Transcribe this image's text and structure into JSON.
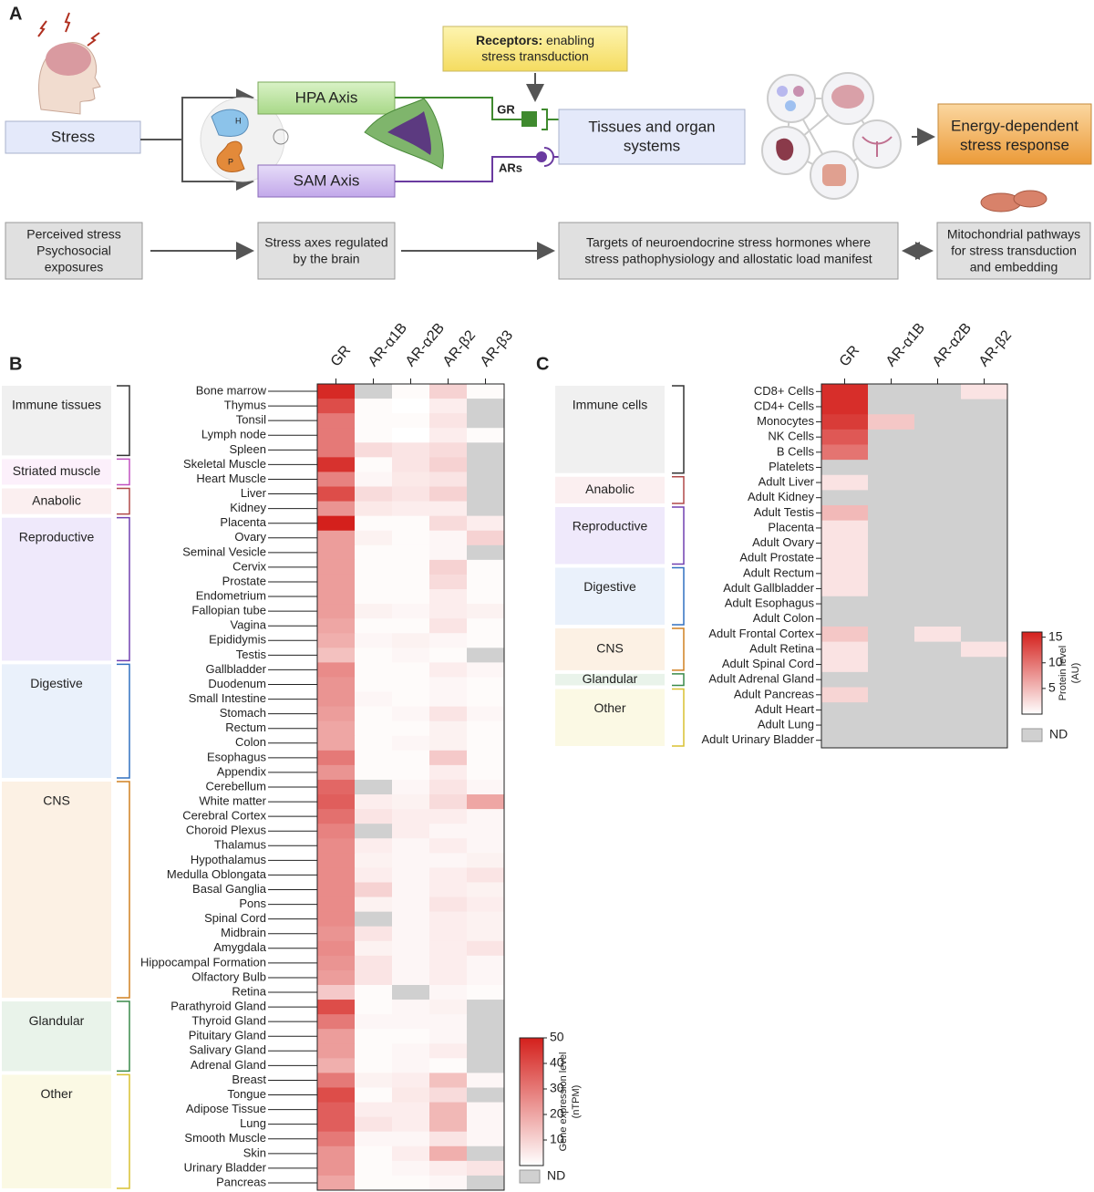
{
  "panel_a": {
    "panel_label": "A",
    "stress": "Stress",
    "hpa": "HPA Axis",
    "sam": "SAM Axis",
    "h_label": "H",
    "p_label": "P",
    "receptors_bold": "Receptors:",
    "receptors_rest": [
      "enabling",
      "stress transduction"
    ],
    "gr": "GR",
    "ars": "ARs",
    "tissues": [
      "Tissues and organ",
      "systems"
    ],
    "energy": [
      "Energy-dependent",
      "stress response"
    ],
    "bottom_row": [
      [
        "Perceived stress",
        "Psychosocial",
        "exposures"
      ],
      [
        "Stress axes regulated",
        "by the brain"
      ],
      [
        "Targets of neuroendocrine stress hormones where",
        "stress pathophysiology and allostatic load manifest"
      ],
      [
        "Mitochondrial pathways",
        "for stress transduction",
        "and embedding"
      ]
    ]
  },
  "chart_data": [
    {
      "type": "heatmap",
      "panel_label": "B",
      "columns": [
        "GR",
        "AR-α1B",
        "AR-α2B",
        "AR-β2",
        "AR-β3"
      ],
      "rows": [
        "Bone marrow",
        "Thymus",
        "Tonsil",
        "Lymph node",
        "Spleen",
        "Skeletal Muscle",
        "Heart Muscle",
        "Liver",
        "Kidney",
        "Placenta",
        "Ovary",
        "Seminal Vesicle",
        "Cervix",
        "Prostate",
        "Endometrium",
        "Fallopian tube",
        "Vagina",
        "Epididymis",
        "Testis",
        "Gallbladder",
        "Duodenum",
        "Small Intestine",
        "Stomach",
        "Rectum",
        "Colon",
        "Esophagus",
        "Appendix",
        "Cerebellum",
        "White matter",
        "Cerebral Cortex",
        "Choroid Plexus",
        "Thalamus",
        "Hypothalamus",
        "Medulla Oblongata",
        "Basal Ganglia",
        "Pons",
        "Spinal Cord",
        "Midbrain",
        "Amygdala",
        "Hippocampal Formation",
        "Olfactory Bulb",
        "Retina",
        "Parathyroid Gland",
        "Thyroid Gland",
        "Pituitary Gland",
        "Salivary Gland",
        "Adrenal Gland",
        "Breast",
        "Tongue",
        "Adipose Tissue",
        "Lung",
        "Smooth Muscle",
        "Skin",
        "Urinary Bladder",
        "Pancreas"
      ],
      "values": [
        [
          48,
          null,
          1,
          10,
          1
        ],
        [
          40,
          1,
          0,
          4,
          null
        ],
        [
          30,
          1,
          1,
          6,
          null
        ],
        [
          30,
          1,
          0,
          4,
          1
        ],
        [
          30,
          8,
          6,
          8,
          null
        ],
        [
          46,
          1,
          6,
          10,
          null
        ],
        [
          28,
          2,
          5,
          6,
          null
        ],
        [
          40,
          8,
          6,
          10,
          null
        ],
        [
          24,
          5,
          4,
          4,
          null
        ],
        [
          50,
          1,
          1,
          8,
          4
        ],
        [
          22,
          3,
          1,
          2,
          10
        ],
        [
          22,
          1,
          1,
          2,
          null
        ],
        [
          22,
          1,
          1,
          10,
          1
        ],
        [
          22,
          1,
          1,
          8,
          1
        ],
        [
          22,
          1,
          1,
          4,
          1
        ],
        [
          22,
          3,
          2,
          4,
          3
        ],
        [
          20,
          1,
          1,
          6,
          1
        ],
        [
          18,
          2,
          3,
          2,
          1
        ],
        [
          14,
          1,
          2,
          1,
          null
        ],
        [
          26,
          1,
          1,
          4,
          2
        ],
        [
          24,
          1,
          1,
          2,
          1
        ],
        [
          24,
          2,
          1,
          2,
          1
        ],
        [
          22,
          1,
          2,
          6,
          2
        ],
        [
          20,
          1,
          1,
          3,
          1
        ],
        [
          20,
          1,
          2,
          3,
          1
        ],
        [
          30,
          1,
          1,
          12,
          1
        ],
        [
          24,
          1,
          1,
          4,
          1
        ],
        [
          34,
          null,
          2,
          6,
          2
        ],
        [
          36,
          4,
          3,
          8,
          20
        ],
        [
          32,
          6,
          4,
          4,
          2
        ],
        [
          28,
          null,
          4,
          2,
          2
        ],
        [
          26,
          4,
          2,
          4,
          2
        ],
        [
          26,
          3,
          2,
          2,
          3
        ],
        [
          26,
          4,
          2,
          4,
          6
        ],
        [
          26,
          10,
          2,
          4,
          3
        ],
        [
          26,
          3,
          2,
          6,
          4
        ],
        [
          26,
          null,
          2,
          4,
          3
        ],
        [
          24,
          6,
          2,
          4,
          3
        ],
        [
          26,
          3,
          2,
          4,
          6
        ],
        [
          24,
          6,
          2,
          4,
          2
        ],
        [
          22,
          6,
          2,
          4,
          2
        ],
        [
          12,
          1,
          null,
          2,
          1
        ],
        [
          40,
          1,
          2,
          3,
          null
        ],
        [
          30,
          2,
          2,
          2,
          null
        ],
        [
          22,
          1,
          1,
          2,
          null
        ],
        [
          22,
          1,
          2,
          4,
          null
        ],
        [
          18,
          1,
          2,
          1,
          null
        ],
        [
          30,
          3,
          4,
          14,
          2
        ],
        [
          40,
          1,
          5,
          8,
          null
        ],
        [
          36,
          4,
          4,
          16,
          2
        ],
        [
          36,
          6,
          4,
          16,
          2
        ],
        [
          30,
          2,
          2,
          6,
          2
        ],
        [
          24,
          1,
          4,
          18,
          null
        ],
        [
          24,
          1,
          2,
          4,
          6
        ],
        [
          20,
          1,
          1,
          2,
          null
        ]
      ],
      "groups": [
        {
          "label": "Immune tissues"
        },
        {
          "label": "Striated muscle"
        },
        {
          "label": "Anabolic"
        },
        {
          "label": "Reproductive"
        },
        {
          "label": "Digestive"
        },
        {
          "label": "CNS"
        },
        {
          "label": "Glandular"
        },
        {
          "label": "Other"
        }
      ],
      "colorbar": {
        "label": [
          "Gene expression level",
          "(nTPM)"
        ],
        "lim": [
          0,
          50
        ],
        "ticks": [
          10,
          20,
          30,
          40,
          50
        ]
      },
      "nd_label": "ND"
    },
    {
      "type": "heatmap",
      "panel_label": "C",
      "columns": [
        "GR",
        "AR-α1B",
        "AR-α2B",
        "AR-β2"
      ],
      "rows": [
        "CD8+ Cells",
        "CD4+ Cells",
        "Monocytes",
        "NK Cells",
        "B Cells",
        "Platelets",
        "Adult Liver",
        "Adult Kidney",
        "Adult Testis",
        "Placenta",
        "Adult Ovary",
        "Adult Prostate",
        "Adult Rectum",
        "Adult Gallbladder",
        "Adult Esophagus",
        "Adult Colon",
        "Adult Frontal Cortex",
        "Adult Retina",
        "Adult Spinal Cord",
        "Adult Adrenal Gland",
        "Adult Pancreas",
        "Adult Heart",
        "Adult Lung",
        "Adult Urinary Bladder"
      ],
      "values": [
        [
          15,
          null,
          null,
          2
        ],
        [
          15,
          null,
          null,
          null
        ],
        [
          14,
          4,
          null,
          null
        ],
        [
          12,
          null,
          null,
          null
        ],
        [
          10,
          null,
          null,
          null
        ],
        [
          null,
          null,
          null,
          null
        ],
        [
          2,
          null,
          null,
          null
        ],
        [
          null,
          null,
          null,
          null
        ],
        [
          5,
          null,
          null,
          null
        ],
        [
          2,
          null,
          null,
          null
        ],
        [
          2,
          null,
          null,
          null
        ],
        [
          2,
          null,
          null,
          null
        ],
        [
          2,
          null,
          null,
          null
        ],
        [
          2,
          null,
          null,
          null
        ],
        [
          null,
          null,
          null,
          null
        ],
        [
          null,
          null,
          null,
          null
        ],
        [
          4,
          null,
          2,
          null
        ],
        [
          2,
          null,
          null,
          2
        ],
        [
          2,
          null,
          null,
          null
        ],
        [
          null,
          null,
          null,
          null
        ],
        [
          3,
          null,
          null,
          null
        ],
        [
          null,
          null,
          null,
          null
        ],
        [
          null,
          null,
          null,
          null
        ],
        [
          null,
          null,
          null,
          null
        ]
      ],
      "groups": [
        {
          "label": "Immune cells"
        },
        {
          "label": "Anabolic"
        },
        {
          "label": "Reproductive"
        },
        {
          "label": "Digestive"
        },
        {
          "label": "CNS"
        },
        {
          "label": "Glandular"
        },
        {
          "label": "Other"
        }
      ],
      "colorbar": {
        "label": [
          "Protein level",
          "(AU)"
        ],
        "lim": [
          0,
          16
        ],
        "ticks": [
          5,
          10,
          15
        ]
      },
      "nd_label": "ND"
    }
  ]
}
